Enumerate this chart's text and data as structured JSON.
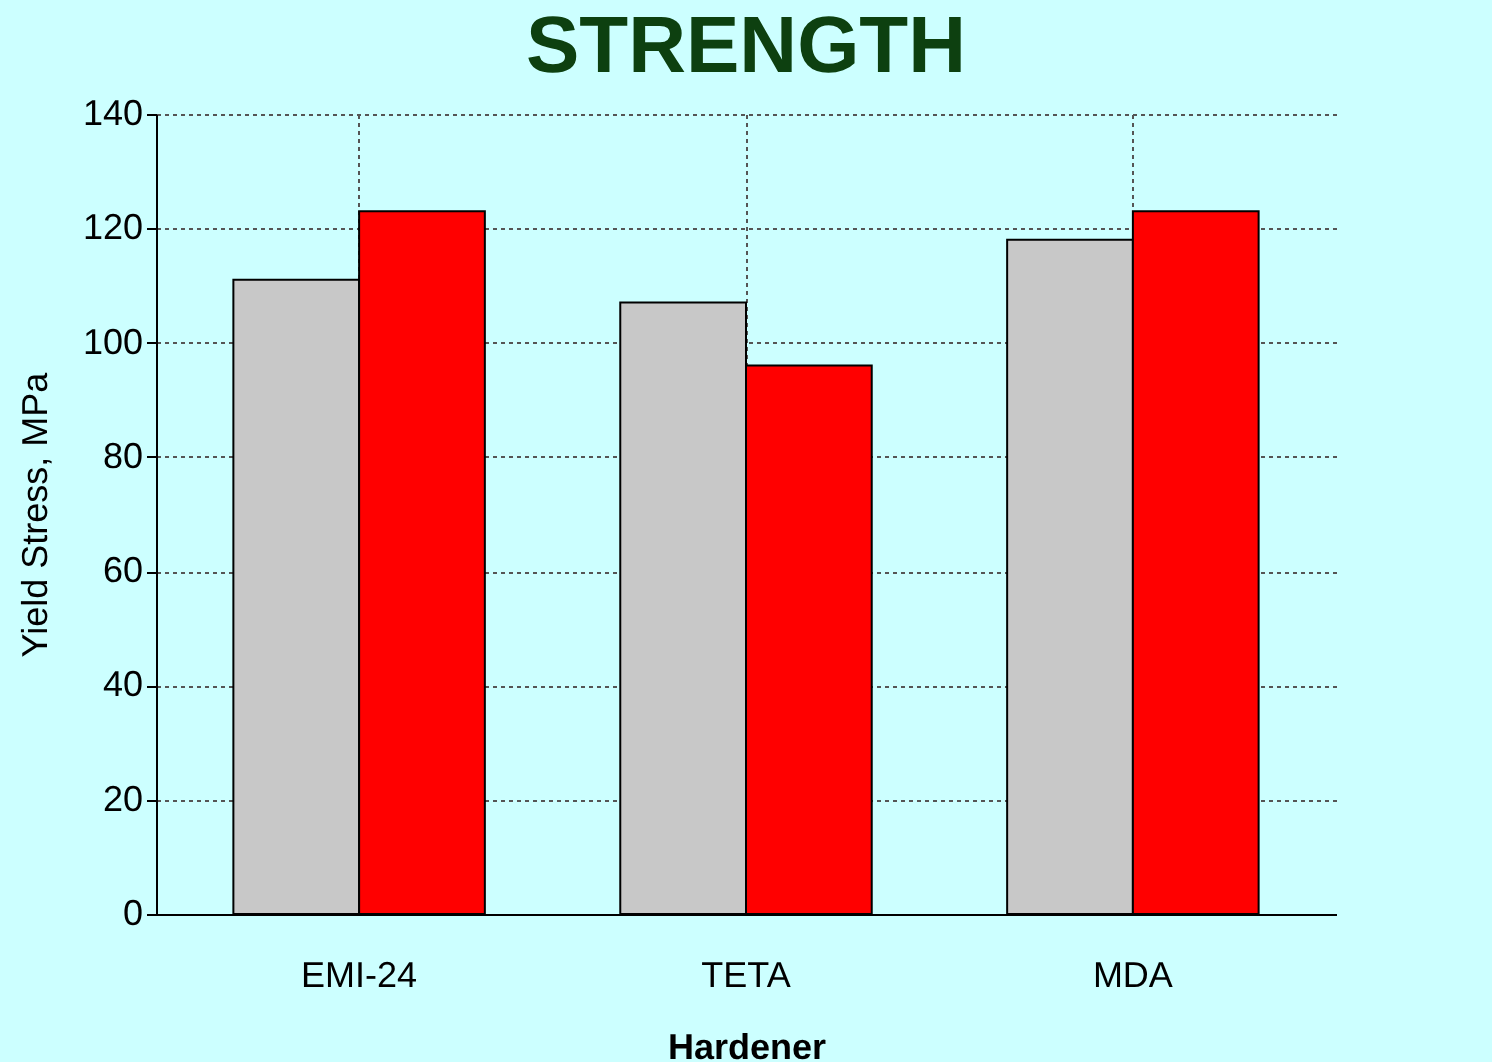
{
  "chart_data": {
    "type": "bar",
    "title": "STRENGTH",
    "xlabel": "Hardener",
    "ylabel": "Yield Stress, MPa",
    "categories": [
      "EMI-24",
      "TETA",
      "MDA"
    ],
    "series": [
      {
        "color": "#c8c8c8",
        "values": [
          111,
          107,
          118
        ]
      },
      {
        "color": "#ff0000",
        "values": [
          123,
          96,
          123
        ]
      }
    ],
    "ylim": [
      0,
      140
    ],
    "yticks": [
      0,
      20,
      40,
      60,
      80,
      100,
      120,
      140
    ],
    "grid": true,
    "legend": false
  }
}
